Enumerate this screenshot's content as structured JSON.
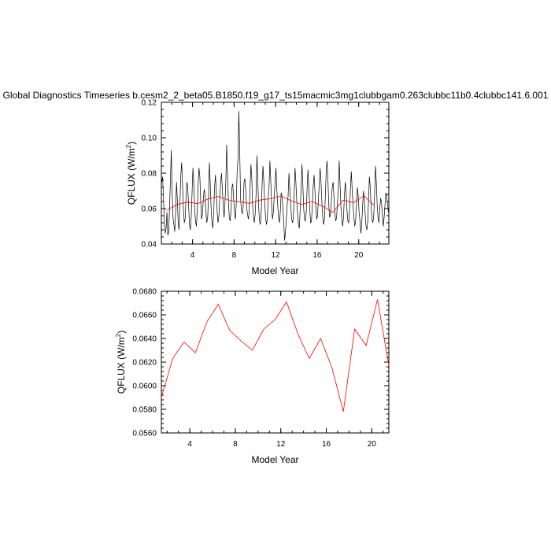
{
  "title": "Global Diagnostics Timeseries b.cesm2_2_beta05.B1850.f19_g17_ts15macmic3mg1clubbgam0.263clubbc11b0.4clubbc141.6.001",
  "colors": {
    "monthly": "#000000",
    "annual": "#ff0000",
    "axes": "#000000"
  },
  "chart_data": [
    {
      "type": "line",
      "xlabel": "Model Year",
      "ylabel": "QFLUX (W/m",
      "ylabel_sup": "2",
      "ylabel_close": ")",
      "xlim": [
        1.0,
        22.9
      ],
      "ylim": [
        0.04,
        0.12
      ],
      "xticks": [
        4,
        8,
        12,
        16,
        20
      ],
      "xtick_labels": [
        "4",
        "8",
        "12",
        "16",
        "20"
      ],
      "yticks": [
        0.04,
        0.06,
        0.08,
        0.1,
        0.12
      ],
      "ytick_labels": [
        "0.04",
        "0.06",
        "0.08",
        "0.10",
        "0.12"
      ],
      "grid": false,
      "series": [
        {
          "style": "monthly",
          "x_start": 1.04,
          "x_step": 0.0833,
          "values": [
            0.075,
            0.078,
            0.066,
            0.052,
            0.046,
            0.049,
            0.058,
            0.045,
            0.047,
            0.061,
            0.076,
            0.093,
            0.069,
            0.055,
            0.051,
            0.047,
            0.058,
            0.075,
            0.065,
            0.052,
            0.048,
            0.063,
            0.079,
            0.086,
            0.074,
            0.06,
            0.052,
            0.054,
            0.066,
            0.075,
            0.072,
            0.062,
            0.051,
            0.048,
            0.055,
            0.069,
            0.083,
            0.074,
            0.06,
            0.053,
            0.05,
            0.059,
            0.073,
            0.083,
            0.078,
            0.064,
            0.054,
            0.057,
            0.065,
            0.071,
            0.068,
            0.058,
            0.052,
            0.055,
            0.066,
            0.086,
            0.074,
            0.06,
            0.052,
            0.049,
            0.058,
            0.072,
            0.079,
            0.07,
            0.058,
            0.052,
            0.056,
            0.066,
            0.075,
            0.08,
            0.071,
            0.061,
            0.055,
            0.063,
            0.076,
            0.096,
            0.078,
            0.064,
            0.055,
            0.053,
            0.059,
            0.072,
            0.074,
            0.066,
            0.058,
            0.054,
            0.062,
            0.08,
            0.088,
            0.115,
            0.094,
            0.066,
            0.059,
            0.057,
            0.061,
            0.075,
            0.077,
            0.07,
            0.061,
            0.057,
            0.054,
            0.058,
            0.072,
            0.085,
            0.077,
            0.062,
            0.056,
            0.052,
            0.057,
            0.068,
            0.09,
            0.076,
            0.061,
            0.053,
            0.051,
            0.058,
            0.074,
            0.084,
            0.075,
            0.063,
            0.055,
            0.051,
            0.054,
            0.066,
            0.072,
            0.087,
            0.076,
            0.061,
            0.054,
            0.058,
            0.067,
            0.075,
            0.083,
            0.071,
            0.062,
            0.055,
            0.052,
            0.058,
            0.069,
            0.067,
            0.06,
            0.052,
            0.042,
            0.047,
            0.054,
            0.063,
            0.067,
            0.08,
            0.071,
            0.062,
            0.055,
            0.052,
            0.054,
            0.068,
            0.083,
            0.075,
            0.064,
            0.057,
            0.051,
            0.049,
            0.06,
            0.071,
            0.085,
            0.074,
            0.06,
            0.054,
            0.053,
            0.058,
            0.072,
            0.082,
            0.071,
            0.06,
            0.052,
            0.053,
            0.062,
            0.073,
            0.079,
            0.07,
            0.061,
            0.054,
            0.056,
            0.065,
            0.074,
            0.083,
            0.075,
            0.064,
            0.055,
            0.051,
            0.054,
            0.067,
            0.081,
            0.087,
            0.076,
            0.062,
            0.055,
            0.057,
            0.065,
            0.072,
            0.075,
            0.066,
            0.057,
            0.053,
            0.055,
            0.063,
            0.071,
            0.087,
            0.074,
            0.061,
            0.054,
            0.05,
            0.055,
            0.067,
            0.075,
            0.07,
            0.059,
            0.053,
            0.052,
            0.06,
            0.071,
            0.081,
            0.071,
            0.062,
            0.055,
            0.05,
            0.053,
            0.063,
            0.072,
            0.067,
            0.058,
            0.053,
            0.046,
            0.051,
            0.061,
            0.07,
            0.065,
            0.057,
            0.05,
            0.048,
            0.053,
            0.065,
            0.078,
            0.072,
            0.061,
            0.054,
            0.052,
            0.056,
            0.068,
            0.084,
            0.075,
            0.062,
            0.055,
            0.052,
            0.06,
            0.066,
            0.063,
            0.057,
            0.05,
            0.055,
            0.062,
            0.069,
            0.067,
            0.062,
            0.058,
            0.055,
            0.059,
            0.074,
            0.099,
            0.079,
            0.062,
            0.054,
            0.052,
            0.056,
            0.065,
            0.073,
            0.068,
            0.059,
            0.053,
            0.05,
            0.056,
            0.067,
            0.082,
            0.073,
            0.06,
            0.052,
            0.042,
            0.048,
            0.058,
            0.073,
            0.084,
            0.083,
            0.07,
            0.055,
            0.05,
            0.052,
            0.059
          ]
        },
        {
          "style": "annual",
          "x": [
            1.5,
            2.5,
            3.5,
            4.5,
            5.5,
            6.5,
            7.5,
            8.5,
            9.5,
            10.5,
            11.5,
            12.5,
            13.5,
            14.5,
            15.5,
            16.5,
            17.5,
            18.5,
            19.5,
            20.5,
            21.5
          ],
          "values": [
            0.059,
            0.0623,
            0.0637,
            0.0628,
            0.0654,
            0.0669,
            0.0647,
            0.0638,
            0.063,
            0.0648,
            0.0656,
            0.0671,
            0.0644,
            0.0623,
            0.064,
            0.0615,
            0.0578,
            0.0648,
            0.0634,
            0.0673,
            0.0617
          ]
        }
      ]
    },
    {
      "type": "line",
      "xlabel": "Model Year",
      "ylabel": "QFLUX (W/m",
      "ylabel_sup": "2",
      "ylabel_close": ")",
      "xlim": [
        1.5,
        21.5
      ],
      "ylim": [
        0.056,
        0.068
      ],
      "xticks": [
        4,
        8,
        12,
        16,
        20
      ],
      "xtick_labels": [
        "4",
        "8",
        "12",
        "16",
        "20"
      ],
      "yticks": [
        0.056,
        0.058,
        0.06,
        0.062,
        0.064,
        0.066,
        0.068
      ],
      "ytick_labels": [
        "0.0560",
        "0.0580",
        "0.0600",
        "0.0620",
        "0.0640",
        "0.0660",
        "0.0680"
      ],
      "grid": false,
      "series": [
        {
          "style": "annual",
          "x": [
            1.5,
            2.5,
            3.5,
            4.5,
            5.5,
            6.5,
            7.5,
            8.5,
            9.5,
            10.5,
            11.5,
            12.5,
            13.5,
            14.5,
            15.5,
            16.5,
            17.5,
            18.5,
            19.5,
            20.5,
            21.5
          ],
          "values": [
            0.059,
            0.0623,
            0.0637,
            0.0628,
            0.0654,
            0.0669,
            0.0647,
            0.0638,
            0.063,
            0.0648,
            0.0656,
            0.0671,
            0.0644,
            0.0623,
            0.064,
            0.0615,
            0.0578,
            0.0648,
            0.0634,
            0.0673,
            0.0617
          ]
        }
      ]
    }
  ]
}
